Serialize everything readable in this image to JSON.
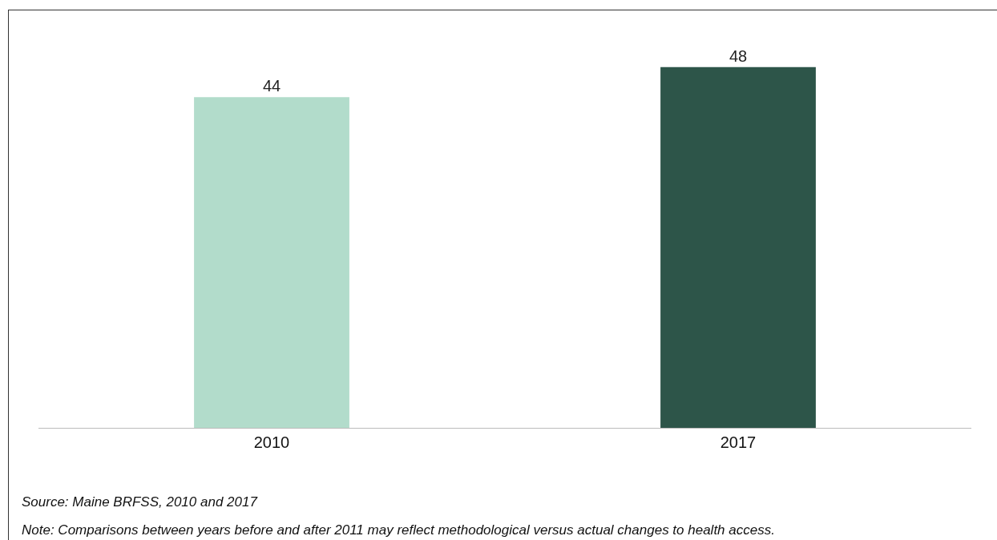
{
  "chart_data": {
    "type": "bar",
    "categories": [
      "2010",
      "2017"
    ],
    "values": [
      44,
      48
    ],
    "colors": [
      "#b2dccb",
      "#2d5549"
    ],
    "data_labels": true,
    "annotations": [
      "Source: Maine BRFSS, 2010 and 2017",
      "Note: Comparisons between years before and after 2011 may reflect methodological versus actual changes to health access."
    ]
  }
}
